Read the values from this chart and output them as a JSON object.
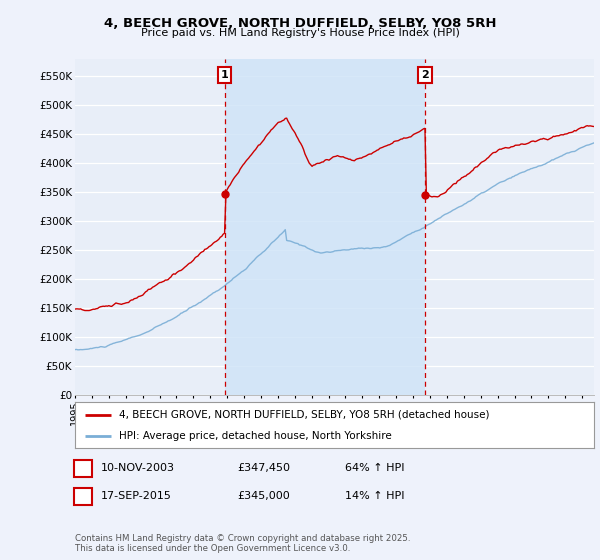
{
  "title": "4, BEECH GROVE, NORTH DUFFIELD, SELBY, YO8 5RH",
  "subtitle": "Price paid vs. HM Land Registry's House Price Index (HPI)",
  "ylabel_ticks": [
    "£0",
    "£50K",
    "£100K",
    "£150K",
    "£200K",
    "£250K",
    "£300K",
    "£350K",
    "£400K",
    "£450K",
    "£500K",
    "£550K"
  ],
  "ytick_vals": [
    0,
    50000,
    100000,
    150000,
    200000,
    250000,
    300000,
    350000,
    400000,
    450000,
    500000,
    550000
  ],
  "ylim": [
    0,
    580000
  ],
  "xlim_start": 1995.0,
  "xlim_end": 2025.7,
  "purchase1_x": 2003.86,
  "purchase1_y": 347450,
  "purchase2_x": 2015.71,
  "purchase2_y": 345000,
  "red_color": "#cc0000",
  "blue_color": "#7aaed6",
  "shade_color": "#d0e4f7",
  "legend_label_red": "4, BEECH GROVE, NORTH DUFFIELD, SELBY, YO8 5RH (detached house)",
  "legend_label_blue": "HPI: Average price, detached house, North Yorkshire",
  "table_row1": [
    "1",
    "10-NOV-2003",
    "£347,450",
    "64% ↑ HPI"
  ],
  "table_row2": [
    "2",
    "17-SEP-2015",
    "£345,000",
    "14% ↑ HPI"
  ],
  "footnote": "Contains HM Land Registry data © Crown copyright and database right 2025.\nThis data is licensed under the Open Government Licence v3.0.",
  "background_color": "#eef2fb",
  "plot_bg_color": "#e8eef8"
}
